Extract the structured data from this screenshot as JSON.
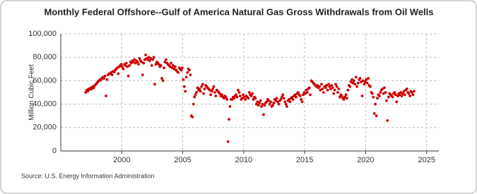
{
  "chart_data": {
    "type": "scatter",
    "title": "Monthly Federal Offshore--Gulf of America Natural Gas Gross Withdrawals from Oil Wells",
    "y_label": "Million Cubic Feet",
    "source": "Source: U.S. Energy Information Administration",
    "color": "#cc0000",
    "grid": true,
    "xlim": [
      1995,
      2026
    ],
    "xticks": [
      2000,
      2005,
      2010,
      2015,
      2020,
      2025
    ],
    "ylim": [
      0,
      100000
    ],
    "yticks": [
      0,
      {
        "value": 20000,
        "label": "20,000"
      },
      {
        "value": 40000,
        "label": "40,000"
      },
      {
        "value": 60000,
        "label": "60,000"
      },
      {
        "value": 80000,
        "label": "80,000"
      },
      {
        "value": 100000,
        "label": "100,000"
      }
    ],
    "x": [
      1997.04,
      1997.13,
      1997.21,
      1997.29,
      1997.38,
      1997.46,
      1997.54,
      1997.63,
      1997.71,
      1997.79,
      1997.88,
      1997.96,
      1998.04,
      1998.13,
      1998.21,
      1998.29,
      1998.38,
      1998.46,
      1998.54,
      1998.63,
      1998.71,
      1998.79,
      1998.88,
      1998.96,
      1999.04,
      1999.13,
      1999.21,
      1999.29,
      1999.38,
      1999.46,
      1999.54,
      1999.63,
      1999.71,
      1999.79,
      1999.88,
      1999.96,
      2000.04,
      2000.13,
      2000.21,
      2000.29,
      2000.38,
      2000.46,
      2000.54,
      2000.63,
      2000.71,
      2000.79,
      2000.88,
      2000.96,
      2001.04,
      2001.13,
      2001.21,
      2001.29,
      2001.38,
      2001.46,
      2001.54,
      2001.63,
      2001.71,
      2001.79,
      2001.88,
      2001.96,
      2002.04,
      2002.13,
      2002.21,
      2002.29,
      2002.38,
      2002.46,
      2002.54,
      2002.63,
      2002.71,
      2002.79,
      2002.88,
      2002.96,
      2003.04,
      2003.13,
      2003.21,
      2003.29,
      2003.38,
      2003.46,
      2003.54,
      2003.63,
      2003.71,
      2003.79,
      2003.88,
      2003.96,
      2004.04,
      2004.13,
      2004.21,
      2004.29,
      2004.38,
      2004.46,
      2004.54,
      2004.63,
      2004.71,
      2004.79,
      2004.88,
      2004.96,
      2005.04,
      2005.13,
      2005.21,
      2005.29,
      2005.38,
      2005.46,
      2005.54,
      2005.63,
      2005.71,
      2005.79,
      2005.88,
      2005.96,
      2006.04,
      2006.13,
      2006.21,
      2006.29,
      2006.38,
      2006.46,
      2006.54,
      2006.63,
      2006.71,
      2006.79,
      2006.88,
      2006.96,
      2007.04,
      2007.13,
      2007.21,
      2007.29,
      2007.38,
      2007.46,
      2007.54,
      2007.63,
      2007.71,
      2007.79,
      2007.88,
      2007.96,
      2008.04,
      2008.13,
      2008.21,
      2008.29,
      2008.38,
      2008.46,
      2008.54,
      2008.63,
      2008.71,
      2008.79,
      2008.88,
      2008.96,
      2009.04,
      2009.13,
      2009.21,
      2009.29,
      2009.38,
      2009.46,
      2009.54,
      2009.63,
      2009.71,
      2009.79,
      2009.88,
      2009.96,
      2010.04,
      2010.13,
      2010.21,
      2010.29,
      2010.38,
      2010.46,
      2010.54,
      2010.63,
      2010.71,
      2010.79,
      2010.88,
      2010.96,
      2011.04,
      2011.13,
      2011.21,
      2011.29,
      2011.38,
      2011.46,
      2011.54,
      2011.63,
      2011.71,
      2011.79,
      2011.88,
      2011.96,
      2012.04,
      2012.13,
      2012.21,
      2012.29,
      2012.38,
      2012.46,
      2012.54,
      2012.63,
      2012.71,
      2012.79,
      2012.88,
      2012.96,
      2013.04,
      2013.13,
      2013.21,
      2013.29,
      2013.38,
      2013.46,
      2013.54,
      2013.63,
      2013.71,
      2013.79,
      2013.88,
      2013.96,
      2014.04,
      2014.13,
      2014.21,
      2014.29,
      2014.38,
      2014.46,
      2014.54,
      2014.63,
      2014.71,
      2014.79,
      2014.88,
      2014.96,
      2015.04,
      2015.13,
      2015.21,
      2015.29,
      2015.38,
      2015.46,
      2015.54,
      2015.63,
      2015.71,
      2015.79,
      2015.88,
      2015.96,
      2016.04,
      2016.13,
      2016.21,
      2016.29,
      2016.38,
      2016.46,
      2016.54,
      2016.63,
      2016.71,
      2016.79,
      2016.88,
      2016.96,
      2017.04,
      2017.13,
      2017.21,
      2017.29,
      2017.38,
      2017.46,
      2017.54,
      2017.63,
      2017.71,
      2017.79,
      2017.88,
      2017.96,
      2018.04,
      2018.13,
      2018.21,
      2018.29,
      2018.38,
      2018.46,
      2018.54,
      2018.63,
      2018.71,
      2018.79,
      2018.88,
      2018.96,
      2019.04,
      2019.13,
      2019.21,
      2019.29,
      2019.38,
      2019.46,
      2019.54,
      2019.63,
      2019.71,
      2019.79,
      2019.88,
      2019.96,
      2020.04,
      2020.13,
      2020.21,
      2020.29,
      2020.38,
      2020.46,
      2020.54,
      2020.63,
      2020.71,
      2020.79,
      2020.88,
      2020.96,
      2021.04,
      2021.13,
      2021.21,
      2021.29,
      2021.38,
      2021.46,
      2021.54,
      2021.63,
      2021.71,
      2021.79,
      2021.88,
      2021.96,
      2022.04,
      2022.13,
      2022.21,
      2022.29,
      2022.38,
      2022.46,
      2022.54,
      2022.63,
      2022.71,
      2022.79,
      2022.88,
      2022.96,
      2023.04,
      2023.13,
      2023.21,
      2023.29,
      2023.38,
      2023.46,
      2023.54,
      2023.63,
      2023.71,
      2023.79,
      2023.88,
      2023.96
    ],
    "values": [
      50000,
      52000,
      51000,
      53000,
      52500,
      54000,
      53000,
      55000,
      54000,
      56000,
      57000,
      58000,
      59000,
      60000,
      61000,
      60500,
      62000,
      63000,
      62000,
      64000,
      47000,
      61000,
      65000,
      66000,
      66000,
      67000,
      65000,
      68000,
      67500,
      69000,
      70000,
      71000,
      66000,
      72000,
      73000,
      74000,
      72000,
      70000,
      74000,
      73000,
      75000,
      72000,
      64000,
      73000,
      76000,
      75000,
      77000,
      76000,
      78000,
      75000,
      77000,
      76000,
      74000,
      79000,
      77000,
      76000,
      65000,
      75000,
      78000,
      82000,
      79000,
      78000,
      80000,
      77000,
      79000,
      73000,
      78000,
      80000,
      57000,
      74000,
      76000,
      75000,
      74000,
      72000,
      73000,
      62000,
      60000,
      71000,
      76000,
      78000,
      75000,
      74000,
      73000,
      72000,
      75000,
      71000,
      73000,
      70000,
      72000,
      69000,
      68000,
      67000,
      71000,
      70000,
      69000,
      71000,
      61000,
      55000,
      51000,
      63000,
      67000,
      70000,
      69000,
      65000,
      30000,
      29000,
      40000,
      46000,
      48000,
      50000,
      54000,
      52000,
      53000,
      51000,
      55000,
      57000,
      49000,
      53000,
      56000,
      55000,
      54000,
      53000,
      52000,
      48000,
      51000,
      53000,
      55000,
      50000,
      47000,
      52000,
      51000,
      50000,
      49000,
      47000,
      48000,
      46000,
      45000,
      47000,
      46000,
      44000,
      8000,
      27000,
      38000,
      44000,
      44000,
      46000,
      45000,
      47000,
      48000,
      46000,
      52000,
      50000,
      47000,
      44000,
      45000,
      48000,
      46000,
      44000,
      47000,
      46000,
      45000,
      50000,
      48000,
      47000,
      49000,
      44000,
      46000,
      45000,
      40000,
      42000,
      39000,
      41000,
      43000,
      38000,
      40000,
      31000,
      39000,
      41000,
      42000,
      44000,
      43000,
      40000,
      42000,
      38000,
      39000,
      41000,
      44000,
      43000,
      45000,
      42000,
      40000,
      43000,
      44000,
      46000,
      48000,
      45000,
      42000,
      40000,
      38000,
      43000,
      44000,
      42000,
      45000,
      46000,
      44000,
      47000,
      48000,
      46000,
      49000,
      50000,
      48000,
      47000,
      44000,
      42000,
      48000,
      50000,
      49000,
      52000,
      50000,
      53000,
      54000,
      48000,
      60000,
      59000,
      58000,
      57000,
      56000,
      55000,
      56000,
      54000,
      55000,
      52000,
      57000,
      53000,
      50000,
      55000,
      54000,
      56000,
      52000,
      57000,
      55000,
      53000,
      56000,
      54000,
      49000,
      52000,
      57000,
      55000,
      50000,
      53000,
      46000,
      48000,
      47000,
      45000,
      44000,
      46000,
      48000,
      45000,
      52000,
      56000,
      55000,
      59000,
      61000,
      58000,
      60000,
      57000,
      63000,
      55000,
      58000,
      61000,
      62000,
      59000,
      47000,
      60000,
      57000,
      59000,
      61000,
      58000,
      62000,
      56000,
      55000,
      50000,
      49000,
      46000,
      32000,
      40000,
      30000,
      45000,
      48000,
      47000,
      50000,
      52000,
      53000,
      49000,
      54000,
      50000,
      43000,
      26000,
      46000,
      49000,
      48000,
      47000,
      46000,
      49000,
      50000,
      48000,
      42000,
      47000,
      49000,
      48000,
      50000,
      47000,
      49000,
      51000,
      48000,
      52000,
      53000,
      50000,
      49000,
      47000,
      51000,
      50000,
      48000,
      51000
    ]
  }
}
